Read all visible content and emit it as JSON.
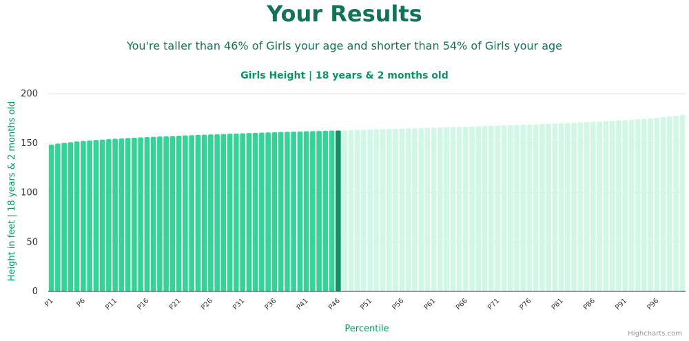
{
  "header": {
    "title": "Your Results",
    "subtitle": "You're taller than 46% of Girls your age and shorter than 54% of Girls your age"
  },
  "credit": "Highcharts.com",
  "colors": {
    "title": "#12735a",
    "accent": "#0a9466",
    "bar_below": "#36d399",
    "bar_current": "#0a9466",
    "bar_above": "#d1f7e6",
    "grid": "#e6e6e6",
    "axis": "#333333"
  },
  "chart_data": {
    "type": "bar",
    "title": "Girls Height | 18 years & 2 months old",
    "xlabel": "Percentile",
    "ylabel": "Height in feet | 18 years & 2 months old",
    "ylim": [
      0,
      200
    ],
    "yticks": [
      0,
      50,
      100,
      150,
      200
    ],
    "highlight_index": 45,
    "categories": [
      "P1",
      "P2",
      "P3",
      "P4",
      "P5",
      "P6",
      "P7",
      "P8",
      "P9",
      "P10",
      "P11",
      "P12",
      "P13",
      "P14",
      "P15",
      "P16",
      "P17",
      "P18",
      "P19",
      "P20",
      "P21",
      "P22",
      "P23",
      "P24",
      "P25",
      "P26",
      "P27",
      "P28",
      "P29",
      "P30",
      "P31",
      "P32",
      "P33",
      "P34",
      "P35",
      "P36",
      "P37",
      "P38",
      "P39",
      "P40",
      "P41",
      "P42",
      "P43",
      "P44",
      "P45",
      "P46",
      "P47",
      "P48",
      "P49",
      "P50",
      "P51",
      "P52",
      "P53",
      "P54",
      "P55",
      "P56",
      "P57",
      "P58",
      "P59",
      "P60",
      "P61",
      "P62",
      "P63",
      "P64",
      "P65",
      "P66",
      "P67",
      "P68",
      "P69",
      "P70",
      "P71",
      "P72",
      "P73",
      "P74",
      "P75",
      "P76",
      "P77",
      "P78",
      "P79",
      "P80",
      "P81",
      "P82",
      "P83",
      "P84",
      "P85",
      "P86",
      "P87",
      "P88",
      "P89",
      "P90",
      "P91",
      "P92",
      "P93",
      "P94",
      "P95",
      "P96",
      "P97",
      "P98",
      "P99",
      "P100"
    ],
    "visible_tick_labels": [
      "P1",
      "P6",
      "P11",
      "P16",
      "P21",
      "P26",
      "P31",
      "P36",
      "P41",
      "P46",
      "P51",
      "P56",
      "P61",
      "P66",
      "P71",
      "P76",
      "P81",
      "P86",
      "P91",
      "P96"
    ],
    "values": [
      148.5,
      149.5,
      150.3,
      151,
      151.7,
      152.2,
      152.7,
      153.2,
      153.6,
      154,
      154.4,
      154.8,
      155.1,
      155.5,
      155.8,
      156.1,
      156.4,
      156.7,
      157,
      157.2,
      157.5,
      157.8,
      158,
      158.3,
      158.5,
      158.8,
      159,
      159.2,
      159.5,
      159.7,
      159.9,
      160.2,
      160.4,
      160.6,
      160.8,
      161,
      161.2,
      161.4,
      161.6,
      161.8,
      162,
      162.1,
      162.3,
      162.5,
      162.7,
      162.7,
      163,
      163.2,
      163.4,
      163.5,
      163.7,
      163.9,
      164.1,
      164.3,
      164.5,
      164.7,
      164.9,
      165.1,
      165.3,
      165.5,
      165.7,
      165.9,
      166.1,
      166.3,
      166.5,
      166.7,
      166.9,
      167.1,
      167.3,
      167.5,
      167.7,
      168,
      168.2,
      168.4,
      168.6,
      168.8,
      169.1,
      169.3,
      169.6,
      169.8,
      170.1,
      170.3,
      170.6,
      170.9,
      171.2,
      171.5,
      171.8,
      172.1,
      172.5,
      172.9,
      173.3,
      173.7,
      174.1,
      174.6,
      175.1,
      175.7,
      176.3,
      177,
      177.8,
      178.5
    ]
  }
}
